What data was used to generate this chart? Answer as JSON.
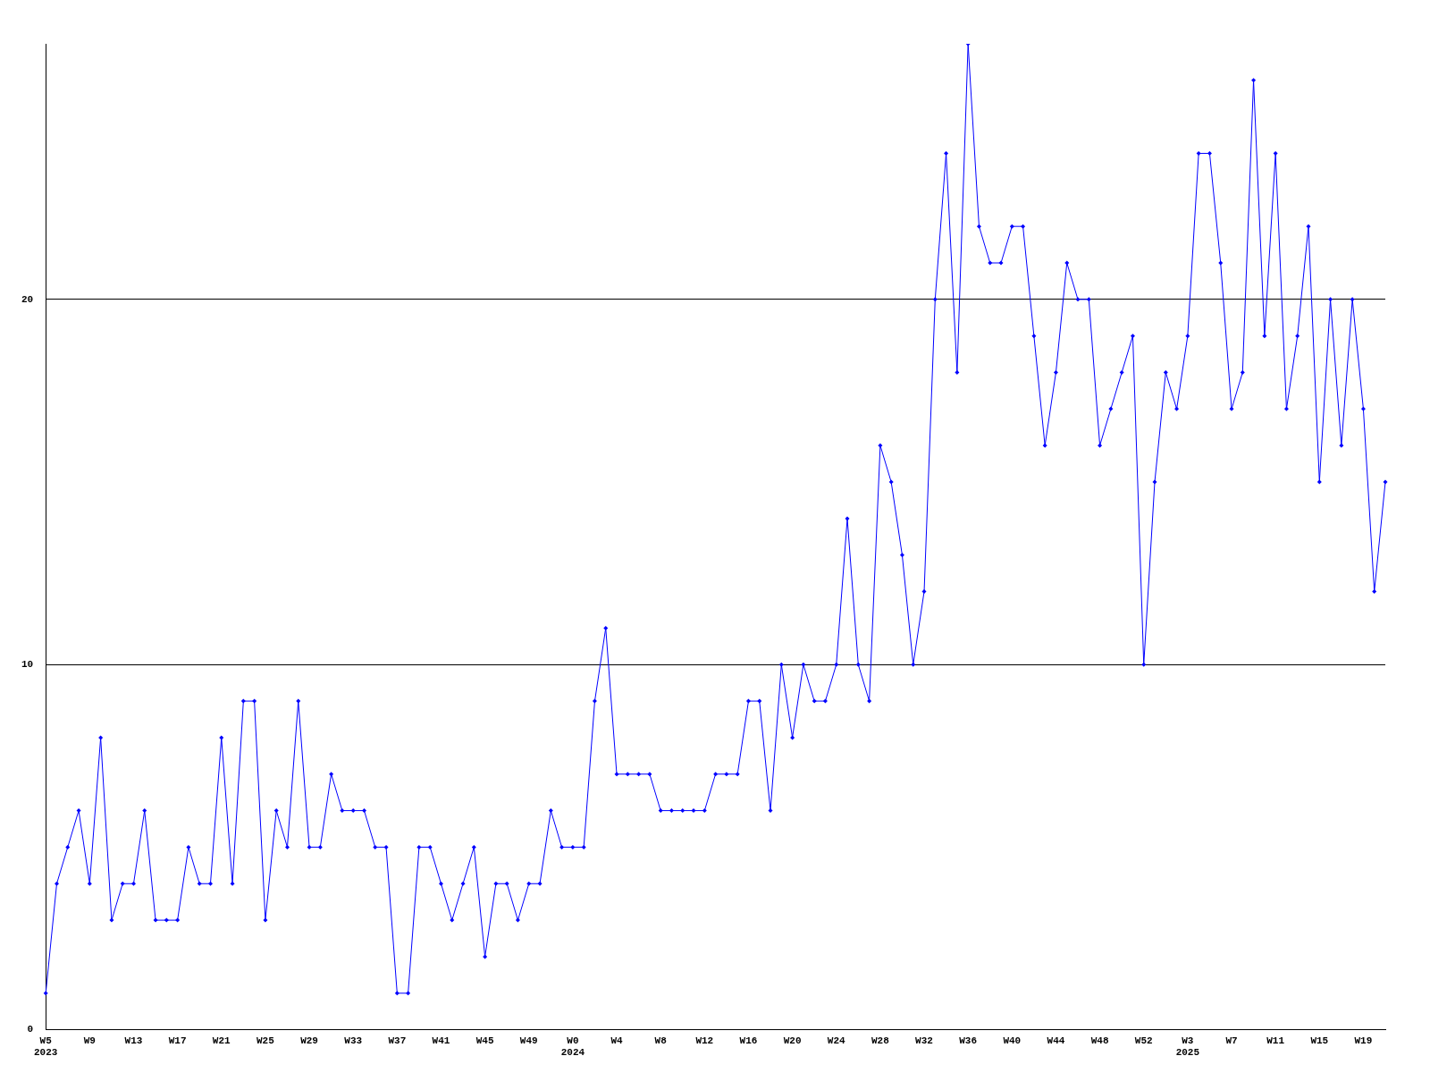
{
  "chart_data": {
    "type": "line",
    "categories": [
      "W5\n2023",
      null,
      null,
      null,
      "W9",
      null,
      null,
      null,
      "W13",
      null,
      null,
      null,
      "W17",
      null,
      null,
      null,
      "W21",
      null,
      null,
      null,
      "W25",
      null,
      null,
      null,
      "W29",
      null,
      null,
      null,
      "W33",
      null,
      null,
      null,
      "W37",
      null,
      null,
      null,
      "W41",
      null,
      null,
      null,
      "W45",
      null,
      null,
      null,
      "W49",
      null,
      null,
      null,
      "W0\n2024",
      null,
      null,
      null,
      "W4",
      null,
      null,
      null,
      "W8",
      null,
      null,
      null,
      "W12",
      null,
      null,
      null,
      "W16",
      null,
      null,
      null,
      "W20",
      null,
      null,
      null,
      "W24",
      null,
      null,
      null,
      "W28",
      null,
      null,
      null,
      "W32",
      null,
      null,
      null,
      "W36",
      null,
      null,
      null,
      "W40",
      null,
      null,
      null,
      "W44",
      null,
      null,
      null,
      "W48",
      null,
      null,
      null,
      "W52",
      null,
      null,
      null,
      "W3\n2025",
      null,
      null,
      null,
      "W7",
      null,
      null,
      null,
      "W11",
      null,
      null,
      null,
      "W15",
      null,
      null,
      null,
      "W19",
      null,
      null
    ],
    "series": [
      {
        "color": "#0000ff",
        "values": [
          1,
          4,
          5,
          6,
          4,
          8,
          3,
          4,
          4,
          6,
          3,
          3,
          3,
          5,
          4,
          4,
          8,
          4,
          9,
          9,
          3,
          6,
          5,
          9,
          5,
          5,
          7,
          6,
          6,
          6,
          5,
          5,
          1,
          1,
          5,
          5,
          4,
          3,
          4,
          5,
          2,
          4,
          4,
          3,
          4,
          4,
          6,
          5,
          5,
          5,
          9,
          11,
          7,
          7,
          7,
          7,
          6,
          6,
          6,
          6,
          6,
          7,
          7,
          7,
          9,
          9,
          6,
          10,
          8,
          10,
          9,
          9,
          10,
          14,
          10,
          9,
          16,
          15,
          13,
          10,
          12,
          20,
          24,
          18,
          27,
          22,
          21,
          21,
          22,
          22,
          19,
          16,
          18,
          21,
          20,
          20,
          16,
          17,
          18,
          19,
          10,
          15,
          18,
          17,
          19,
          24,
          24,
          21,
          17,
          18,
          26,
          19,
          24,
          17,
          19,
          22,
          15,
          20,
          16,
          20,
          17,
          12,
          15
        ]
      }
    ],
    "ylim": [
      0,
      27
    ],
    "yticks": [
      0,
      10,
      20
    ],
    "grid": "y",
    "legend": false,
    "marker": "diamond",
    "line_style": "solid"
  }
}
